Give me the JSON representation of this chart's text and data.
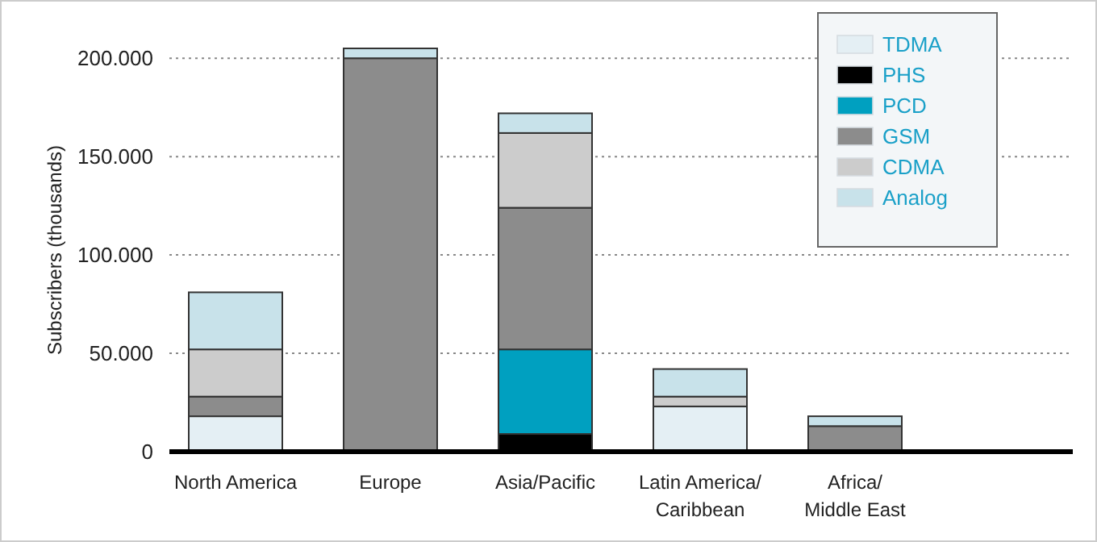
{
  "chart_data": {
    "type": "bar",
    "stacked": true,
    "ylabel": "Subscribers (thousands)",
    "categories": [
      "North America",
      "Europe",
      "Asia/Pacific",
      "Latin America/\nCaribbean",
      "Africa/\nMiddle East"
    ],
    "series": [
      {
        "name": "TDMA",
        "color": "#e4eff4",
        "values": [
          18000,
          null,
          null,
          23000,
          null
        ]
      },
      {
        "name": "PHS",
        "color": "#000000",
        "values": [
          null,
          null,
          9000,
          null,
          null
        ]
      },
      {
        "name": "PCD",
        "color": "#00a0c0",
        "values": [
          null,
          null,
          43000,
          null,
          null
        ]
      },
      {
        "name": "GSM",
        "color": "#8c8c8c",
        "values": [
          10000,
          200000,
          72000,
          null,
          13000
        ]
      },
      {
        "name": "CDMA",
        "color": "#cccccc",
        "values": [
          24000,
          null,
          38000,
          5000,
          null
        ]
      },
      {
        "name": "Analog",
        "color": "#c8e2ea",
        "values": [
          29000,
          5000,
          10000,
          14000,
          5000
        ]
      }
    ],
    "ylim": [
      0,
      205000
    ],
    "yticks": [
      {
        "value": 0,
        "label": "0"
      },
      {
        "value": 50000,
        "label": "50.000"
      },
      {
        "value": 100000,
        "label": "100.000"
      },
      {
        "value": 150000,
        "label": "150.000"
      },
      {
        "value": 200000,
        "label": "200.000"
      }
    ],
    "grid": "y",
    "legend": "top right"
  }
}
